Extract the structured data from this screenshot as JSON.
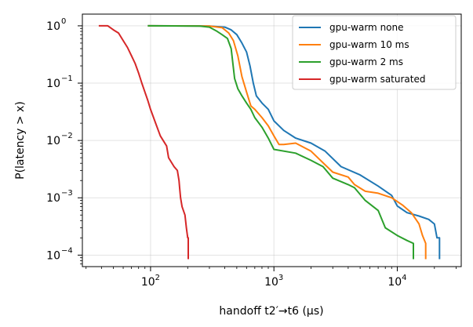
{
  "chart_data": {
    "type": "line",
    "xlabel": "handoff t2′→t6 (µs)",
    "ylabel": "P(latency > x)",
    "xscale": "log",
    "yscale": "log",
    "xlim": [
      28,
      33000
    ],
    "ylim": [
      6.3e-05,
      1.6
    ],
    "grid": true,
    "legend_position": "top-right",
    "x_ticks": [
      {
        "value": 100,
        "base": "10",
        "exp": "2"
      },
      {
        "value": 1000,
        "base": "10",
        "exp": "3"
      },
      {
        "value": 10000,
        "base": "10",
        "exp": "4"
      }
    ],
    "y_ticks": [
      {
        "value": 1,
        "base": "10",
        "exp": "0"
      },
      {
        "value": 0.1,
        "base": "10",
        "exp": "−1"
      },
      {
        "value": 0.01,
        "base": "10",
        "exp": "−2"
      },
      {
        "value": 0.001,
        "base": "10",
        "exp": "−3"
      },
      {
        "value": 0.0001,
        "base": "10",
        "exp": "−4"
      }
    ],
    "series": [
      {
        "name": "gpu-warm none",
        "color": "#1f77b4",
        "points": [
          [
            95,
            1
          ],
          [
            300,
            0.99
          ],
          [
            400,
            0.95
          ],
          [
            450,
            0.85
          ],
          [
            500,
            0.7
          ],
          [
            550,
            0.5
          ],
          [
            600,
            0.35
          ],
          [
            640,
            0.2
          ],
          [
            680,
            0.1
          ],
          [
            720,
            0.06
          ],
          [
            800,
            0.045
          ],
          [
            900,
            0.035
          ],
          [
            1000,
            0.022
          ],
          [
            1200,
            0.015
          ],
          [
            1500,
            0.011
          ],
          [
            2000,
            0.009
          ],
          [
            2600,
            0.0065
          ],
          [
            3500,
            0.0035
          ],
          [
            5000,
            0.0025
          ],
          [
            7000,
            0.0016
          ],
          [
            9000,
            0.0011
          ],
          [
            10000,
            0.00072
          ],
          [
            12000,
            0.00055
          ],
          [
            15000,
            0.00048
          ],
          [
            18000,
            0.00042
          ],
          [
            20000,
            0.00035
          ],
          [
            21000,
            0.0002
          ],
          [
            22000,
            0.0002
          ],
          [
            22000,
            8.5e-05
          ]
        ]
      },
      {
        "name": "gpu-warm 10 ms",
        "color": "#ff7f0e",
        "points": [
          [
            95,
            1
          ],
          [
            300,
            0.99
          ],
          [
            380,
            0.93
          ],
          [
            430,
            0.75
          ],
          [
            470,
            0.55
          ],
          [
            510,
            0.3
          ],
          [
            550,
            0.13
          ],
          [
            600,
            0.07
          ],
          [
            650,
            0.04
          ],
          [
            700,
            0.035
          ],
          [
            800,
            0.025
          ],
          [
            900,
            0.018
          ],
          [
            1000,
            0.012
          ],
          [
            1100,
            0.0085
          ],
          [
            1200,
            0.0085
          ],
          [
            1500,
            0.009
          ],
          [
            2000,
            0.0065
          ],
          [
            3000,
            0.0028
          ],
          [
            4000,
            0.0023
          ],
          [
            4500,
            0.0017
          ],
          [
            5500,
            0.0013
          ],
          [
            7000,
            0.0012
          ],
          [
            9000,
            0.001
          ],
          [
            11000,
            0.00075
          ],
          [
            13000,
            0.00055
          ],
          [
            15000,
            0.00035
          ],
          [
            16000,
            0.00022
          ],
          [
            17000,
            0.00016
          ],
          [
            17000,
            8.5e-05
          ]
        ]
      },
      {
        "name": "gpu-warm 2 ms",
        "color": "#2ca02c",
        "points": [
          [
            95,
            1
          ],
          [
            250,
            0.99
          ],
          [
            300,
            0.95
          ],
          [
            340,
            0.82
          ],
          [
            380,
            0.7
          ],
          [
            420,
            0.6
          ],
          [
            450,
            0.4
          ],
          [
            480,
            0.12
          ],
          [
            510,
            0.08
          ],
          [
            550,
            0.06
          ],
          [
            600,
            0.045
          ],
          [
            650,
            0.035
          ],
          [
            700,
            0.025
          ],
          [
            800,
            0.017
          ],
          [
            900,
            0.011
          ],
          [
            1000,
            0.007
          ],
          [
            1500,
            0.006
          ],
          [
            2000,
            0.0045
          ],
          [
            2500,
            0.0035
          ],
          [
            3000,
            0.0022
          ],
          [
            4000,
            0.0017
          ],
          [
            4500,
            0.0015
          ],
          [
            5500,
            0.0009
          ],
          [
            7000,
            0.0006
          ],
          [
            8000,
            0.0003
          ],
          [
            10000,
            0.00022
          ],
          [
            12000,
            0.00018
          ],
          [
            13500,
            0.00016
          ],
          [
            13500,
            8.5e-05
          ]
        ]
      },
      {
        "name": "gpu-warm saturated",
        "color": "#d62728",
        "points": [
          [
            38,
            1
          ],
          [
            45,
            1
          ],
          [
            50,
            0.85
          ],
          [
            55,
            0.75
          ],
          [
            60,
            0.55
          ],
          [
            65,
            0.42
          ],
          [
            70,
            0.3
          ],
          [
            75,
            0.22
          ],
          [
            80,
            0.15
          ],
          [
            85,
            0.1
          ],
          [
            90,
            0.07
          ],
          [
            95,
            0.05
          ],
          [
            100,
            0.035
          ],
          [
            110,
            0.02
          ],
          [
            120,
            0.012
          ],
          [
            135,
            0.008
          ],
          [
            140,
            0.005
          ],
          [
            155,
            0.0035
          ],
          [
            165,
            0.003
          ],
          [
            170,
            0.002
          ],
          [
            172,
            0.0015
          ],
          [
            175,
            0.001
          ],
          [
            180,
            0.0007
          ],
          [
            190,
            0.0005
          ],
          [
            195,
            0.0003
          ],
          [
            200,
            0.0002
          ],
          [
            202,
            0.0002
          ],
          [
            202,
            8.5e-05
          ]
        ]
      }
    ]
  }
}
